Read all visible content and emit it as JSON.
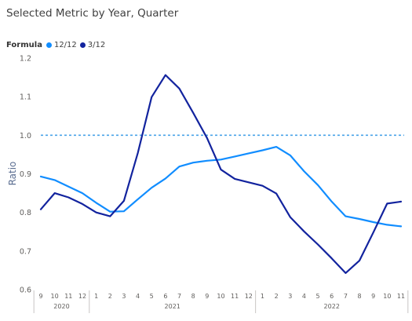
{
  "chart_data": {
    "type": "line",
    "title": "Selected Metric by Year, Quarter",
    "legend_title": "Formula",
    "legend_position": "top-left",
    "ylabel": "Ratio",
    "xlabel": "",
    "ylim": [
      0.6,
      1.2
    ],
    "y_ticks": [
      "0.6",
      "0.7",
      "0.8",
      "0.9",
      "1.0",
      "1.1",
      "1.2"
    ],
    "grid": false,
    "categories": [
      "9",
      "10",
      "11",
      "12",
      "1",
      "2",
      "3",
      "4",
      "5",
      "6",
      "7",
      "8",
      "9",
      "10",
      "11",
      "12",
      "1",
      "2",
      "3",
      "4",
      "5",
      "6",
      "7",
      "8",
      "9",
      "10",
      "11"
    ],
    "year_groups": [
      {
        "label": "2020",
        "start": 0,
        "end": 3
      },
      {
        "label": "2021",
        "start": 4,
        "end": 15
      },
      {
        "label": "2022",
        "start": 16,
        "end": 26
      }
    ],
    "reference_line": {
      "value": 1.0,
      "style": "dashed",
      "color": "#4aa3e8"
    },
    "series": [
      {
        "name": "12/12",
        "color": "#118dff",
        "values": [
          0.893,
          0.884,
          0.867,
          0.85,
          0.825,
          0.802,
          0.803,
          0.834,
          0.864,
          0.888,
          0.919,
          0.929,
          0.934,
          0.937,
          0.945,
          0.953,
          0.961,
          0.97,
          0.948,
          0.907,
          0.871,
          0.828,
          0.79,
          0.783,
          0.775,
          0.768,
          0.764
        ]
      },
      {
        "name": "3/12",
        "color": "#12239e",
        "values": [
          0.808,
          0.85,
          0.839,
          0.822,
          0.8,
          0.79,
          0.83,
          0.954,
          1.099,
          1.156,
          1.121,
          1.058,
          0.993,
          0.911,
          0.887,
          0.878,
          0.869,
          0.849,
          0.788,
          0.751,
          0.717,
          0.681,
          0.643,
          0.675,
          0.748,
          0.823,
          0.828
        ]
      }
    ]
  }
}
